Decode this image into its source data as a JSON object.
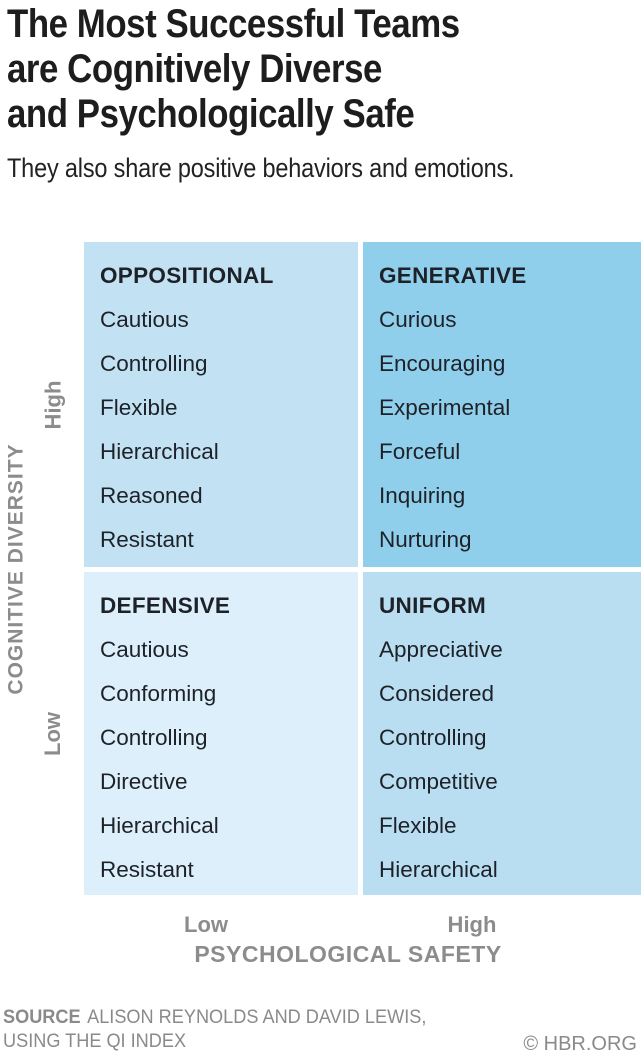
{
  "header": {
    "title_lines": [
      "The Most Successful Teams",
      "are Cognitively Diverse",
      "and Psychologically Safe"
    ],
    "subtitle": "They also share positive behaviors and emotions."
  },
  "chart_data": {
    "type": "table",
    "chart_kind": "2x2-quadrant-matrix",
    "title": "The Most Successful Teams are Cognitively Diverse and Psychologically Safe",
    "subtitle": "They also share positive behaviors and emotions.",
    "x_axis": {
      "label": "PSYCHOLOGICAL SAFETY",
      "ticks": [
        "Low",
        "High"
      ]
    },
    "y_axis": {
      "label": "COGNITIVE DIVERSITY",
      "ticks": [
        "High",
        "Low"
      ]
    },
    "quadrants": [
      {
        "name": "OPPOSITIONAL",
        "cognitive_diversity": "High",
        "psychological_safety": "Low",
        "color": "#c2e2f4",
        "traits": [
          "Cautious",
          "Controlling",
          "Flexible",
          "Hierarchical",
          "Reasoned",
          "Resistant"
        ]
      },
      {
        "name": "GENERATIVE",
        "cognitive_diversity": "High",
        "psychological_safety": "High",
        "color": "#90cfec",
        "traits": [
          "Curious",
          "Encouraging",
          "Experimental",
          "Forceful",
          "Inquiring",
          "Nurturing"
        ]
      },
      {
        "name": "DEFENSIVE",
        "cognitive_diversity": "Low",
        "psychological_safety": "Low",
        "color": "#ddeffa",
        "traits": [
          "Cautious",
          "Conforming",
          "Controlling",
          "Directive",
          "Hierarchical",
          "Resistant"
        ]
      },
      {
        "name": "UNIFORM",
        "cognitive_diversity": "Low",
        "psychological_safety": "High",
        "color": "#b9def2",
        "traits": [
          "Appreciative",
          "Considered",
          "Controlling",
          "Competitive",
          "Flexible",
          "Hierarchical"
        ]
      }
    ]
  },
  "footer": {
    "source_label": "SOURCE",
    "source_line1": "ALISON REYNOLDS AND DAVID LEWIS,",
    "source_line2": "USING THE QI INDEX",
    "copyright": "© HBR.ORG"
  },
  "colors": {
    "title_text": "#1d1d1d",
    "quadrant_text": "#1e2228",
    "axis_gray": "#8c8c8c",
    "source_gray": "#8a8a8a",
    "background": "#ffffff"
  }
}
